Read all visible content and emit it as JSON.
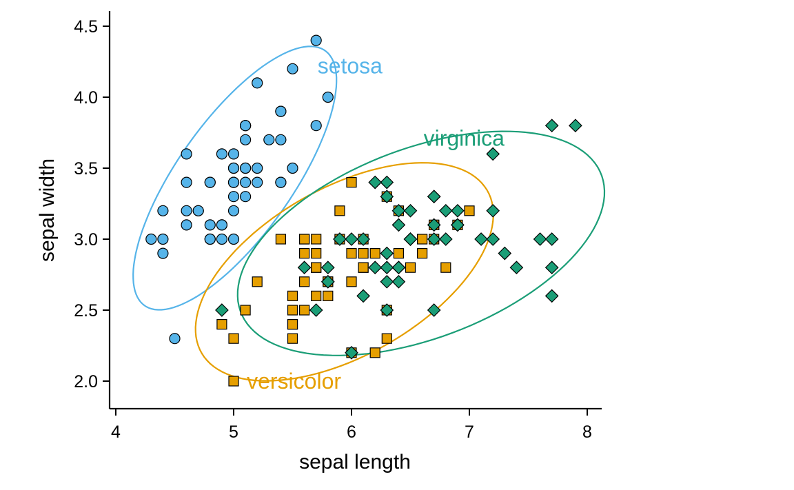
{
  "chart_data": {
    "type": "scatter",
    "title": "",
    "xlabel": "sepal length",
    "ylabel": "sepal width",
    "xlim": [
      3.95,
      8.1
    ],
    "ylim": [
      1.8,
      4.6
    ],
    "x_ticks": [
      "4",
      "5",
      "6",
      "7",
      "8"
    ],
    "y_ticks": [
      "2.0",
      "2.5",
      "3.0",
      "3.5",
      "4.0",
      "4.5"
    ],
    "grid": false,
    "legend": "none",
    "series": [
      {
        "name": "setosa",
        "label_text": "setosa",
        "color": "#56B4E9",
        "marker": "circle",
        "label_at": [
          5.7,
          4.22
        ],
        "ellipse": {
          "center": [
            5.01,
            3.43
          ],
          "sd": [
            0.3525,
            0.3791
          ],
          "r": 0.7425
        },
        "points": [
          [
            5.1,
            3.5
          ],
          [
            4.9,
            3.0
          ],
          [
            4.7,
            3.2
          ],
          [
            4.6,
            3.1
          ],
          [
            5.0,
            3.6
          ],
          [
            5.4,
            3.9
          ],
          [
            4.6,
            3.4
          ],
          [
            5.0,
            3.4
          ],
          [
            4.4,
            2.9
          ],
          [
            4.9,
            3.1
          ],
          [
            5.4,
            3.7
          ],
          [
            4.8,
            3.4
          ],
          [
            4.8,
            3.0
          ],
          [
            4.3,
            3.0
          ],
          [
            5.8,
            4.0
          ],
          [
            5.7,
            4.4
          ],
          [
            5.4,
            3.9
          ],
          [
            5.1,
            3.5
          ],
          [
            5.7,
            3.8
          ],
          [
            5.1,
            3.8
          ],
          [
            5.4,
            3.4
          ],
          [
            5.1,
            3.7
          ],
          [
            4.6,
            3.6
          ],
          [
            5.1,
            3.3
          ],
          [
            4.8,
            3.4
          ],
          [
            5.0,
            3.0
          ],
          [
            5.0,
            3.4
          ],
          [
            5.2,
            3.5
          ],
          [
            5.2,
            3.4
          ],
          [
            4.7,
            3.2
          ],
          [
            4.8,
            3.1
          ],
          [
            5.4,
            3.4
          ],
          [
            5.2,
            4.1
          ],
          [
            5.5,
            4.2
          ],
          [
            4.9,
            3.1
          ],
          [
            5.0,
            3.2
          ],
          [
            5.5,
            3.5
          ],
          [
            4.9,
            3.6
          ],
          [
            4.4,
            3.0
          ],
          [
            5.1,
            3.4
          ],
          [
            5.0,
            3.5
          ],
          [
            4.5,
            2.3
          ],
          [
            4.4,
            3.2
          ],
          [
            5.0,
            3.5
          ],
          [
            5.1,
            3.8
          ],
          [
            4.8,
            3.0
          ],
          [
            5.1,
            3.8
          ],
          [
            4.6,
            3.2
          ],
          [
            5.3,
            3.7
          ],
          [
            5.0,
            3.3
          ]
        ]
      },
      {
        "name": "versicolor",
        "label_text": "versicolor",
        "color": "#E69F00",
        "marker": "square",
        "label_at": [
          5.1,
          2.0
        ],
        "ellipse": {
          "center": [
            5.94,
            2.77
          ],
          "sd": [
            0.5162,
            0.3138
          ],
          "r": 0.5259
        },
        "points": [
          [
            7.0,
            3.2
          ],
          [
            6.4,
            3.2
          ],
          [
            6.9,
            3.1
          ],
          [
            5.5,
            2.3
          ],
          [
            6.5,
            2.8
          ],
          [
            5.7,
            2.8
          ],
          [
            6.3,
            3.3
          ],
          [
            4.9,
            2.4
          ],
          [
            6.6,
            2.9
          ],
          [
            5.2,
            2.7
          ],
          [
            5.0,
            2.0
          ],
          [
            5.9,
            3.0
          ],
          [
            6.0,
            2.2
          ],
          [
            6.1,
            2.9
          ],
          [
            5.6,
            2.9
          ],
          [
            6.7,
            3.1
          ],
          [
            5.6,
            3.0
          ],
          [
            5.8,
            2.7
          ],
          [
            6.2,
            2.2
          ],
          [
            5.6,
            2.5
          ],
          [
            5.9,
            3.2
          ],
          [
            6.1,
            2.8
          ],
          [
            6.3,
            2.5
          ],
          [
            6.1,
            2.8
          ],
          [
            6.4,
            2.9
          ],
          [
            6.6,
            3.0
          ],
          [
            6.8,
            2.8
          ],
          [
            6.7,
            3.0
          ],
          [
            6.0,
            2.9
          ],
          [
            5.7,
            2.6
          ],
          [
            5.5,
            2.4
          ],
          [
            5.5,
            2.4
          ],
          [
            5.8,
            2.7
          ],
          [
            6.0,
            2.7
          ],
          [
            5.4,
            3.0
          ],
          [
            6.0,
            3.4
          ],
          [
            6.7,
            3.1
          ],
          [
            6.3,
            2.3
          ],
          [
            5.6,
            3.0
          ],
          [
            5.5,
            2.5
          ],
          [
            5.5,
            2.6
          ],
          [
            6.1,
            3.0
          ],
          [
            5.8,
            2.6
          ],
          [
            5.0,
            2.3
          ],
          [
            5.6,
            2.7
          ],
          [
            5.7,
            3.0
          ],
          [
            5.7,
            2.9
          ],
          [
            6.2,
            2.9
          ],
          [
            5.1,
            2.5
          ],
          [
            5.7,
            2.8
          ]
        ]
      },
      {
        "name": "virginica",
        "label_text": "virginica",
        "color": "#1B9E77",
        "marker": "diamond",
        "label_at": [
          6.6,
          3.71
        ],
        "ellipse": {
          "center": [
            6.59,
            2.97
          ],
          "sd": [
            0.6359,
            0.3225
          ],
          "r": 0.4572
        },
        "points": [
          [
            6.3,
            3.3
          ],
          [
            5.8,
            2.7
          ],
          [
            7.1,
            3.0
          ],
          [
            6.3,
            2.9
          ],
          [
            6.5,
            3.0
          ],
          [
            7.6,
            3.0
          ],
          [
            4.9,
            2.5
          ],
          [
            7.3,
            2.9
          ],
          [
            6.7,
            2.5
          ],
          [
            7.2,
            3.6
          ],
          [
            6.5,
            3.2
          ],
          [
            6.4,
            2.7
          ],
          [
            6.8,
            3.0
          ],
          [
            5.7,
            2.5
          ],
          [
            5.8,
            2.8
          ],
          [
            6.4,
            3.2
          ],
          [
            6.5,
            3.0
          ],
          [
            7.7,
            3.8
          ],
          [
            7.7,
            2.6
          ],
          [
            6.0,
            2.2
          ],
          [
            6.9,
            3.2
          ],
          [
            5.6,
            2.8
          ],
          [
            7.7,
            2.8
          ],
          [
            6.3,
            2.7
          ],
          [
            6.7,
            3.3
          ],
          [
            7.2,
            3.2
          ],
          [
            6.2,
            2.8
          ],
          [
            6.1,
            3.0
          ],
          [
            6.4,
            2.8
          ],
          [
            7.2,
            3.0
          ],
          [
            7.4,
            2.8
          ],
          [
            7.9,
            3.8
          ],
          [
            6.4,
            2.8
          ],
          [
            6.3,
            2.8
          ],
          [
            6.1,
            2.6
          ],
          [
            7.7,
            3.0
          ],
          [
            6.3,
            3.4
          ],
          [
            6.4,
            3.1
          ],
          [
            6.0,
            3.0
          ],
          [
            6.9,
            3.1
          ],
          [
            6.7,
            3.1
          ],
          [
            6.9,
            3.1
          ],
          [
            5.8,
            2.7
          ],
          [
            6.8,
            3.2
          ],
          [
            6.7,
            3.3
          ],
          [
            6.7,
            3.0
          ],
          [
            6.3,
            2.5
          ],
          [
            6.5,
            3.0
          ],
          [
            6.2,
            3.4
          ],
          [
            5.9,
            3.0
          ]
        ]
      }
    ]
  }
}
